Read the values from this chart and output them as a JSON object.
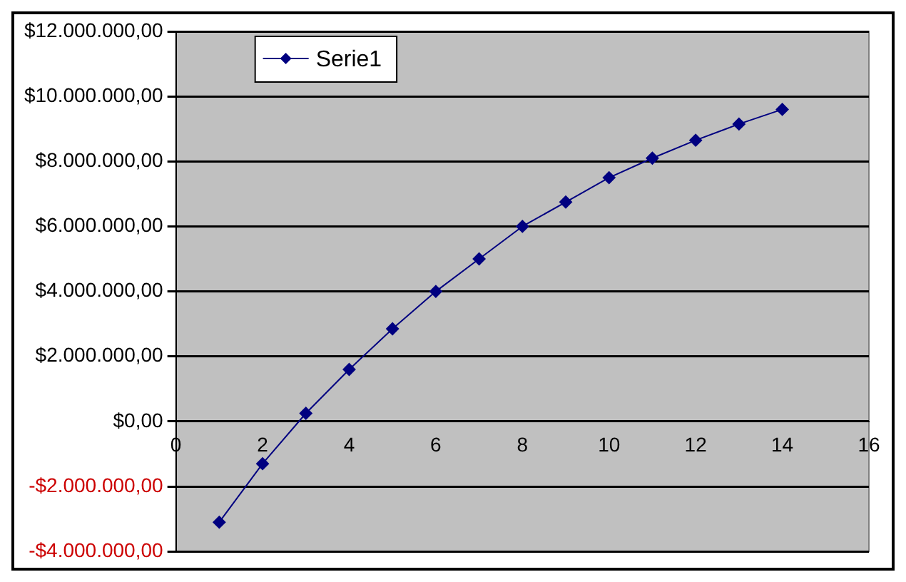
{
  "chart_data": {
    "type": "line",
    "x": [
      1,
      2,
      3,
      4,
      5,
      6,
      7,
      8,
      9,
      10,
      11,
      12,
      13,
      14
    ],
    "series": [
      {
        "name": "Serie1",
        "color": "#000080",
        "values": [
          -3100000,
          -1300000,
          250000,
          1600000,
          2850000,
          4000000,
          5000000,
          6000000,
          6750000,
          7500000,
          8100000,
          8650000,
          9150000,
          9600000
        ]
      }
    ],
    "xlim": [
      0,
      16
    ],
    "xticks": [
      0,
      2,
      4,
      6,
      8,
      10,
      12,
      14,
      16
    ],
    "ylim": [
      -4000000,
      12000000
    ],
    "yticks": [
      {
        "value": -4000000,
        "label": "-$4.000.000,00"
      },
      {
        "value": -2000000,
        "label": "-$2.000.000,00"
      },
      {
        "value": 0,
        "label": "$0,00"
      },
      {
        "value": 2000000,
        "label": "$2.000.000,00"
      },
      {
        "value": 4000000,
        "label": "$4.000.000,00"
      },
      {
        "value": 6000000,
        "label": "$6.000.000,00"
      },
      {
        "value": 8000000,
        "label": "$8.000.000,00"
      },
      {
        "value": 10000000,
        "label": "$10.000.000,00"
      },
      {
        "value": 12000000,
        "label": "$12.000.000,00"
      }
    ],
    "grid": "y",
    "legend": "top left",
    "marker": "diamond",
    "line_style": "solid"
  }
}
